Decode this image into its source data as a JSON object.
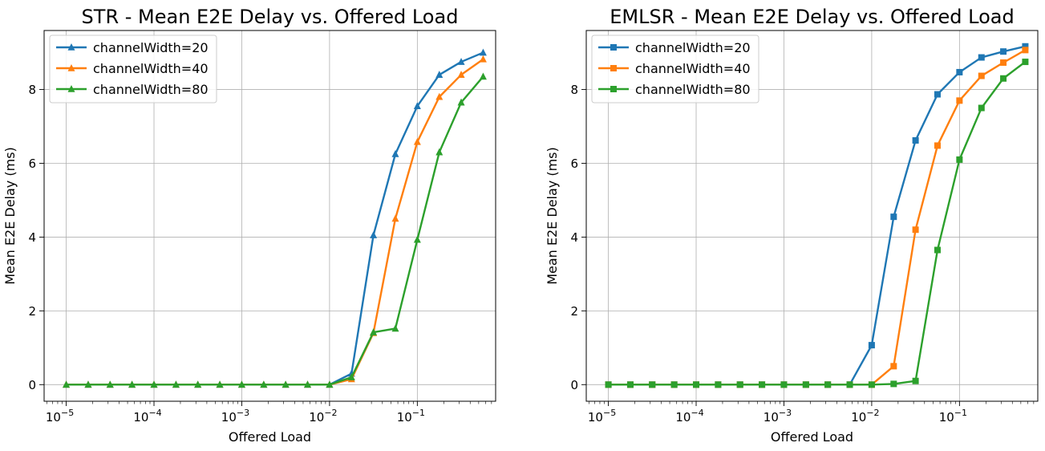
{
  "chart_data": [
    {
      "type": "line",
      "title": "STR - Mean E2E Delay vs. Offered Load",
      "xlabel": "Offered Load",
      "ylabel": "Mean E2E Delay (ms)",
      "xscale": "log",
      "xlim": [
        5.6e-06,
        0.78
      ],
      "ylim": [
        -0.45,
        9.6
      ],
      "grid": true,
      "legend_position": "top-left",
      "marker": "triangle",
      "yticks": [
        0,
        2,
        4,
        6,
        8
      ],
      "ytick_labels": [
        "0",
        "2",
        "4",
        "6",
        "8"
      ],
      "xticks": [
        1e-05,
        0.0001,
        0.001,
        0.01,
        0.1
      ],
      "xtick_labels": [
        {
          "base": "10",
          "exp": "−5"
        },
        {
          "base": "10",
          "exp": "−4"
        },
        {
          "base": "10",
          "exp": "−3"
        },
        {
          "base": "10",
          "exp": "−2"
        },
        {
          "base": "10",
          "exp": "−1"
        }
      ],
      "x": [
        1e-05,
        1.78e-05,
        3.16e-05,
        5.62e-05,
        0.0001,
        0.000178,
        0.000316,
        0.000562,
        0.001,
        0.00178,
        0.00316,
        0.00562,
        0.01,
        0.0178,
        0.0316,
        0.0562,
        0.1,
        0.178,
        0.316,
        0.562
      ],
      "series": [
        {
          "name": "channelWidth=20",
          "color": "#1f77b4",
          "values": [
            0,
            0,
            0,
            0,
            0,
            0,
            0,
            0,
            0,
            0,
            0,
            0,
            0,
            0.3,
            4.05,
            6.25,
            7.55,
            8.4,
            8.75,
            9.0
          ]
        },
        {
          "name": "channelWidth=40",
          "color": "#ff7f0e",
          "values": [
            0,
            0,
            0,
            0,
            0,
            0,
            0,
            0,
            0,
            0,
            0,
            0,
            0,
            0.15,
            1.4,
            4.5,
            6.58,
            7.8,
            8.4,
            8.82
          ]
        },
        {
          "name": "channelWidth=80",
          "color": "#2ca02c",
          "values": [
            0,
            0,
            0,
            0,
            0,
            0,
            0,
            0,
            0,
            0,
            0,
            0,
            0,
            0.2,
            1.42,
            1.52,
            3.93,
            6.3,
            7.65,
            8.35
          ]
        }
      ]
    },
    {
      "type": "line",
      "title": "EMLSR - Mean E2E Delay vs. Offered Load",
      "xlabel": "Offered Load",
      "ylabel": "Mean E2E Delay (ms)",
      "xscale": "log",
      "xlim": [
        5.6e-06,
        0.78
      ],
      "ylim": [
        -0.45,
        9.6
      ],
      "grid": true,
      "legend_position": "top-left",
      "marker": "square",
      "yticks": [
        0,
        2,
        4,
        6,
        8
      ],
      "ytick_labels": [
        "0",
        "2",
        "4",
        "6",
        "8"
      ],
      "xticks": [
        1e-05,
        0.0001,
        0.001,
        0.01,
        0.1
      ],
      "xtick_labels": [
        {
          "base": "10",
          "exp": "−5"
        },
        {
          "base": "10",
          "exp": "−4"
        },
        {
          "base": "10",
          "exp": "−3"
        },
        {
          "base": "10",
          "exp": "−2"
        },
        {
          "base": "10",
          "exp": "−1"
        }
      ],
      "x": [
        1e-05,
        1.78e-05,
        3.16e-05,
        5.62e-05,
        0.0001,
        0.000178,
        0.000316,
        0.000562,
        0.001,
        0.00178,
        0.00316,
        0.00562,
        0.01,
        0.0178,
        0.0316,
        0.0562,
        0.1,
        0.178,
        0.316,
        0.562
      ],
      "series": [
        {
          "name": "channelWidth=20",
          "color": "#1f77b4",
          "values": [
            0,
            0,
            0,
            0,
            0,
            0,
            0,
            0,
            0,
            0,
            0,
            0,
            1.07,
            4.55,
            6.62,
            7.87,
            8.47,
            8.87,
            9.03,
            9.17
          ]
        },
        {
          "name": "channelWidth=40",
          "color": "#ff7f0e",
          "values": [
            0,
            0,
            0,
            0,
            0,
            0,
            0,
            0,
            0,
            0,
            0,
            0,
            0,
            0.5,
            4.2,
            6.48,
            7.7,
            8.37,
            8.73,
            9.07
          ]
        },
        {
          "name": "channelWidth=80",
          "color": "#2ca02c",
          "values": [
            0,
            0,
            0,
            0,
            0,
            0,
            0,
            0,
            0,
            0,
            0,
            0,
            0,
            0.02,
            0.1,
            3.65,
            6.1,
            7.5,
            8.3,
            8.75
          ]
        }
      ]
    }
  ]
}
